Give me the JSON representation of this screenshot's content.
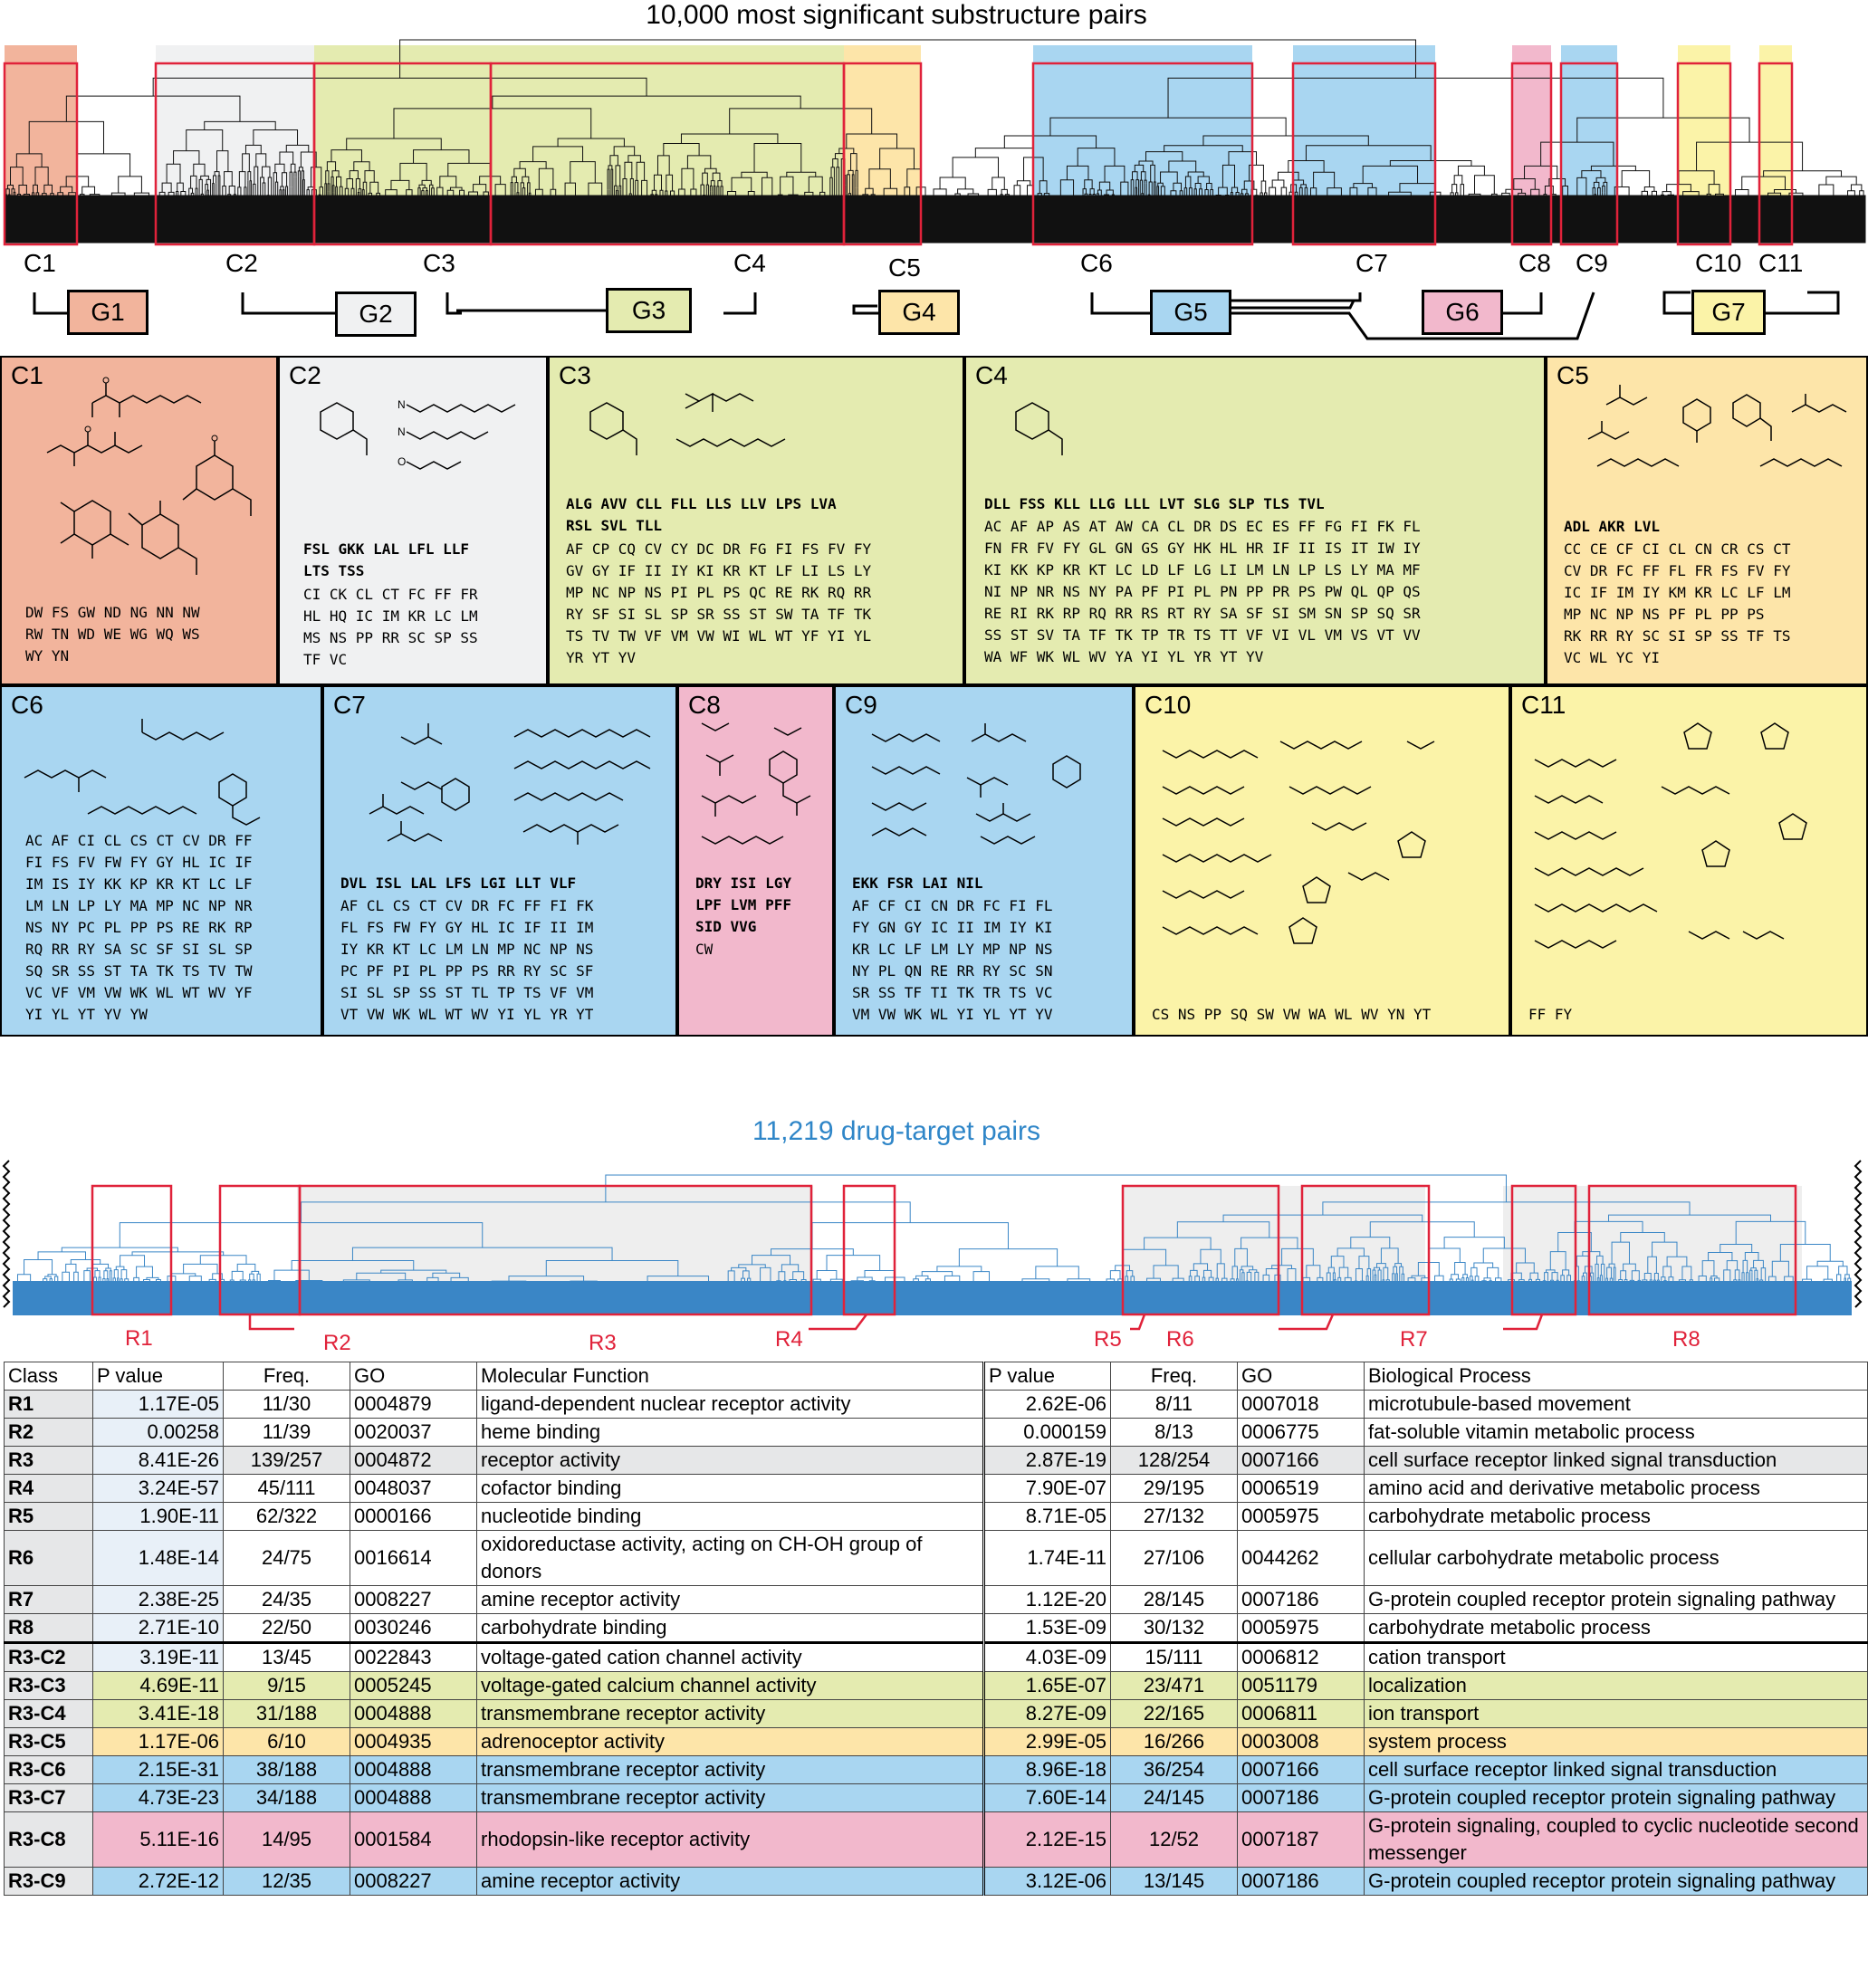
{
  "top_title": "10,000 most significant substructure pairs",
  "cluster_labels": [
    "C1",
    "C2",
    "C3",
    "C4",
    "C5",
    "C6",
    "C7",
    "C8",
    "C9",
    "C10",
    "C11"
  ],
  "groups": [
    "G1",
    "G2",
    "G3",
    "G4",
    "G5",
    "G6",
    "G7"
  ],
  "colors": {
    "G1": "#f2b49c",
    "G2": "#f0f1f2",
    "G3": "#e4ebb0",
    "G4": "#fde5a9",
    "G5": "#a9d6f1",
    "G6": "#f2b8cc",
    "G7": "#fbf3a8",
    "red": "#e0223a",
    "blue": "#2f86c8"
  },
  "panels": [
    {
      "title": "C1",
      "bold": "",
      "codes": "DW FS GW ND NG NN NW\nRW TN WD WE WG WQ WS\nWY YN"
    },
    {
      "title": "C2",
      "bold": "FSL GKK LAL LFL LLF\nLTS TSS",
      "codes": "CI CK CL CT FC FF FR\nHL HQ IC IM KR LC LM\nMS NS PP RR SC SP SS\nTF VC"
    },
    {
      "title": "C3",
      "bold": "ALG AVV CLL FLL LLS LLV LPS LVA\nRSL SVL TLL",
      "codes": "AF CP CQ CV CY DC DR FG FI FS FV FY\nGV GY IF II IY KI KR KT LF LI LS LY\nMP NC NP NS PI PL PS QC RE RK RQ RR\nRY SF SI SL SP SR SS ST SW TA TF TK\nTS TV TW VF VM VW WI WL WT YF YI YL\nYR YT YV"
    },
    {
      "title": "C4",
      "bold": "DLL FSS KLL LLG LLL LVT SLG SLP TLS TVL",
      "codes": "AC AF AP AS AT AW CA CL DR DS EC ES FF FG FI FK FL\nFN FR FV FY GL GN GS GY HK HL HR IF II IS IT IW IY\nKI KK KP KR KT LC LD LF LG LI LM LN LP LS LY MA MF\nNI NP NR NS NY PA PF PI PL PN PP PR PS PW QL QP QS\nRE RI RK RP RQ RR RS RT RY SA SF SI SM SN SP SQ SR\nSS ST SV TA TF TK TP TR TS TT VF VI VL VM VS VT VV\nWA WF WK WL WV YA YI YL YR YT YV"
    },
    {
      "title": "C5",
      "bold": "ADL AKR LVL",
      "codes": "CC CE CF CI CL CN CR CS CT\nCV DR FC FF FL FR FS FV FY\nIC IF IM IY KM KR LC LF LM\nMP NC NP NS PF PL PP PS\nRK RR RY SC SI SP SS TF TS\nVC WL YC YI"
    },
    {
      "title": "C6",
      "bold": "",
      "codes": "AC AF CI CL CS CT CV DR FF\nFI FS FV FW FY GY HL IC IF\nIM IS IY KK KP KR KT LC LF\nLM LN LP LY MA MP NC NP NR\nNS NY PC PL PP PS RE RK RP\nRQ RR RY SA SC SF SI SL SP\nSQ SR SS ST TA TK TS TV TW\nVC VF VM VW WK WL WT WV YF\nYI YL YT YV YW"
    },
    {
      "title": "C7",
      "bold": "DVL ISL LAL LFS LGI LLT VLF",
      "codes": "AF CL CS CT CV DR FC FF FI FK\nFL FS FW FY GY HL IC IF II IM\nIY KR KT LC LM LN MP NC NP NS\nPC PF PI PL PP PS RR RY SC SF\nSI SL SP SS ST TL TP TS VF VM\nVT VW WK WL WT WV YI YL YR YT"
    },
    {
      "title": "C8",
      "bold": "DRY ISI LGY\nLPF LVM PFF\nSID VVG",
      "codes": "CW"
    },
    {
      "title": "C9",
      "bold": "EKK FSR LAI NIL",
      "codes": "AF CF CI CN DR FC FI FL\nFY GN GY IC II IM IY KI\nKR LC LF LM LY MP NP NS\nNY PL QN RE RR RY SC SN\nSR SS TF TI TK TR TS VC\nVM VW WK WL YI YL YT YV"
    },
    {
      "title": "C10",
      "bold": "",
      "codes": "CS NS PP SQ SW VW WA WL WV YN YT"
    },
    {
      "title": "C11",
      "bold": "",
      "codes": "FF FY"
    }
  ],
  "mid_title": "11,219 drug-target pairs",
  "region_labels": [
    "R1",
    "R2",
    "R3",
    "R4",
    "R5",
    "R6",
    "R7",
    "R8"
  ],
  "table": {
    "headers": [
      "Class",
      "P value",
      "Freq.",
      "GO",
      "Molecular Function",
      "P value",
      "Freq.",
      "GO",
      "Biological Process"
    ],
    "rows": [
      {
        "cls": "R1",
        "p1": "1.17E-05",
        "f1": "11/30",
        "go1": "0004879",
        "mf": "ligand-dependent nuclear receptor activity",
        "p2": "2.62E-06",
        "f2": "8/11",
        "go2": "0007018",
        "bp": "microtubule-based movement",
        "color": ""
      },
      {
        "cls": "R2",
        "p1": "0.00258",
        "f1": "11/39",
        "go1": "0020037",
        "mf": "heme binding",
        "p2": "0.000159",
        "f2": "8/13",
        "go2": "0006775",
        "bp": "fat-soluble vitamin metabolic process",
        "color": ""
      },
      {
        "cls": "R3",
        "p1": "8.41E-26",
        "f1": "139/257",
        "go1": "0004872",
        "mf": "receptor activity",
        "p2": "2.87E-19",
        "f2": "128/254",
        "go2": "0007166",
        "bp": "cell surface receptor linked signal transduction",
        "color": "#e6e7e8"
      },
      {
        "cls": "R4",
        "p1": "3.24E-57",
        "f1": "45/111",
        "go1": "0048037",
        "mf": "cofactor binding",
        "p2": "7.90E-07",
        "f2": "29/195",
        "go2": "0006519",
        "bp": "amino acid and derivative metabolic process",
        "color": ""
      },
      {
        "cls": "R5",
        "p1": "1.90E-11",
        "f1": "62/322",
        "go1": "0000166",
        "mf": "nucleotide binding",
        "p2": "8.71E-05",
        "f2": "27/132",
        "go2": "0005975",
        "bp": "carbohydrate metabolic process",
        "color": ""
      },
      {
        "cls": "R6",
        "p1": "1.48E-14",
        "f1": "24/75",
        "go1": "0016614",
        "mf": "oxidoreductase activity, acting on CH-OH group of donors",
        "p2": "1.74E-11",
        "f2": "27/106",
        "go2": "0044262",
        "bp": "cellular carbohydrate metabolic process",
        "color": ""
      },
      {
        "cls": "R7",
        "p1": "2.38E-25",
        "f1": "24/35",
        "go1": "0008227",
        "mf": "amine receptor activity",
        "p2": "1.12E-20",
        "f2": "28/145",
        "go2": "0007186",
        "bp": "G-protein coupled receptor protein signaling pathway",
        "color": ""
      },
      {
        "cls": "R8",
        "p1": "2.71E-10",
        "f1": "22/50",
        "go1": "0030246",
        "mf": "carbohydrate binding",
        "p2": "1.53E-09",
        "f2": "30/132",
        "go2": "0005975",
        "bp": "carbohydrate metabolic process",
        "color": ""
      },
      {
        "cls": "R3-C2",
        "p1": "3.19E-11",
        "f1": "13/45",
        "go1": "0022843",
        "mf": "voltage-gated cation channel activity",
        "p2": "4.03E-09",
        "f2": "15/111",
        "go2": "0006812",
        "bp": "cation transport",
        "color": ""
      },
      {
        "cls": "R3-C3",
        "p1": "4.69E-11",
        "f1": "9/15",
        "go1": "0005245",
        "mf": "voltage-gated calcium channel activity",
        "p2": "1.65E-07",
        "f2": "23/471",
        "go2": "0051179",
        "bp": "localization",
        "color": "#e4ebb0"
      },
      {
        "cls": "R3-C4",
        "p1": "3.41E-18",
        "f1": "31/188",
        "go1": "0004888",
        "mf": "transmembrane receptor activity",
        "p2": "8.27E-09",
        "f2": "22/165",
        "go2": "0006811",
        "bp": "ion transport",
        "color": "#e4ebb0"
      },
      {
        "cls": "R3-C5",
        "p1": "1.17E-06",
        "f1": "6/10",
        "go1": "0004935",
        "mf": "adrenoceptor activity",
        "p2": "2.99E-05",
        "f2": "16/266",
        "go2": "0003008",
        "bp": "system process",
        "color": "#fde5a9"
      },
      {
        "cls": "R3-C6",
        "p1": "2.15E-31",
        "f1": "38/188",
        "go1": "0004888",
        "mf": "transmembrane receptor activity",
        "p2": "8.96E-18",
        "f2": "36/254",
        "go2": "0007166",
        "bp": "cell surface receptor linked signal transduction",
        "color": "#a9d6f1"
      },
      {
        "cls": "R3-C7",
        "p1": "4.73E-23",
        "f1": "34/188",
        "go1": "0004888",
        "mf": "transmembrane receptor activity",
        "p2": "7.60E-14",
        "f2": "24/145",
        "go2": "0007186",
        "bp": "G-protein coupled receptor protein signaling pathway",
        "color": "#a9d6f1"
      },
      {
        "cls": "R3-C8",
        "p1": "5.11E-16",
        "f1": "14/95",
        "go1": "0001584",
        "mf": "rhodopsin-like receptor activity",
        "p2": "2.12E-15",
        "f2": "12/52",
        "go2": "0007187",
        "bp": "G-protein signaling, coupled to cyclic nucleotide second messenger",
        "color": "#f2b8cc"
      },
      {
        "cls": "R3-C9",
        "p1": "2.72E-12",
        "f1": "12/35",
        "go1": "0008227",
        "mf": "amine receptor activity",
        "p2": "3.12E-06",
        "f2": "13/145",
        "go2": "0007186",
        "bp": "G-protein coupled receptor protein signaling pathway",
        "color": "#a9d6f1"
      }
    ]
  }
}
